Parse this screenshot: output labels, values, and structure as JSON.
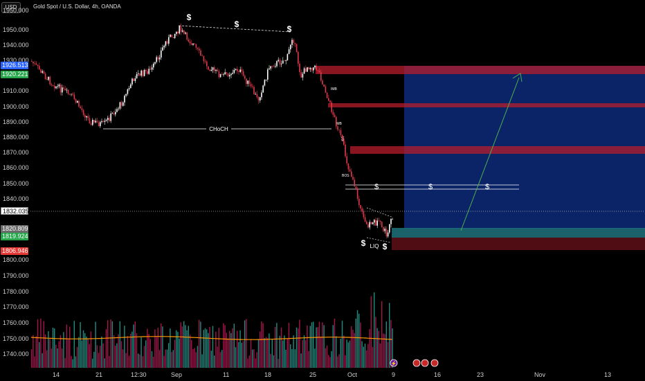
{
  "header": {
    "currency_button": "USD",
    "symbol_title": "Gold Spot / U.S. Dollar, 4h, OANDA"
  },
  "price_axis": {
    "ticks": [
      "1950.000",
      "1940.000",
      "1930.000",
      "1910.000",
      "1900.000",
      "1890.000",
      "1880.000",
      "1870.000",
      "1860.000",
      "1850.000",
      "1840.000",
      "1800.000",
      "1790.000",
      "1780.000",
      "1770.000",
      "1760.000",
      "1750.000",
      "1740.000"
    ],
    "badges": [
      {
        "text": "1926.513",
        "color": "#2962ff"
      },
      {
        "text": "1920.221",
        "color": "#26a64a"
      },
      {
        "text": "1832.035",
        "color": "#ffffff",
        "fg": "#000000"
      },
      {
        "text": "1820.809",
        "color": "#6b6b6b"
      },
      {
        "text": "1819.924",
        "color": "#26a64a"
      },
      {
        "text": "1806.946",
        "color": "#e53935"
      }
    ]
  },
  "time_axis": {
    "labels": [
      "14",
      "21",
      "12:30",
      "Sep",
      "11",
      "18",
      "25",
      "Oct",
      "9",
      "16",
      "23",
      "Nov",
      "13"
    ]
  },
  "annotations": {
    "choch": "CHoCH",
    "imb1": "IMB",
    "imb2": "IMB",
    "bos": "BOS",
    "liq": "LIQ",
    "dollar": "$"
  },
  "colors": {
    "bull": "#ffffff",
    "bear": "#e0394c",
    "zone_red": "#b71c2c",
    "zone_blue": "#0d2a7a",
    "zone_teal": "#1d6b74",
    "volume_teal": "#26a69a",
    "volume_red": "#c2185b",
    "ma_orange": "#ff9800",
    "arrow_green": "#4caf50"
  }
}
